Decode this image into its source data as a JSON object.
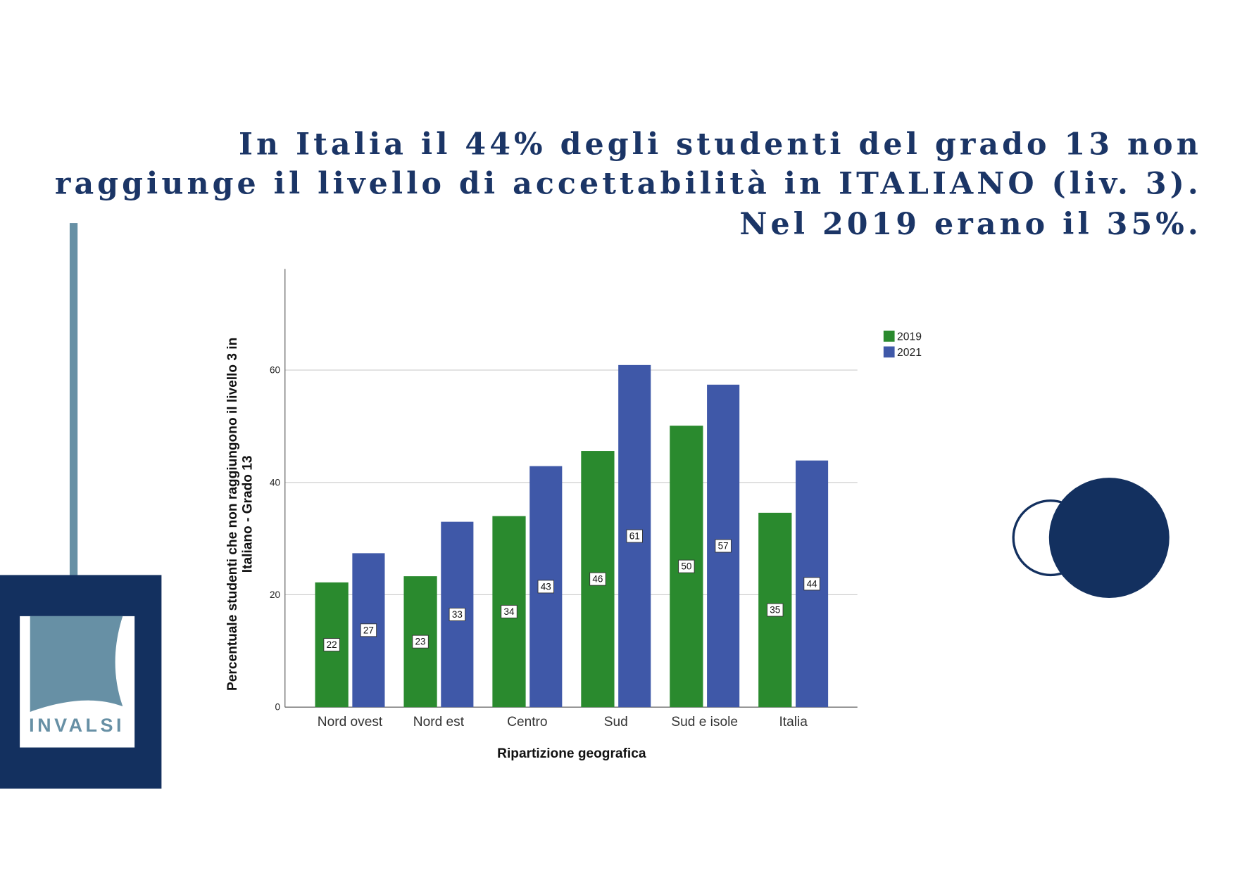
{
  "logo": "INVALSI",
  "chart_data": {
    "type": "bar",
    "title": [
      "In Italia il 44% degli studenti del grado 13 non",
      "raggiunge il livello di accettabilità in ITALIANO (liv. 3).",
      "Nel 2019 erano il 35%."
    ],
    "x_label": "Ripartizione geografica",
    "y_label": [
      "Percentuale studenti che non raggiungono il livello 3 in",
      "Italiano - Grado 13"
    ],
    "categories": [
      "Nord ovest",
      "Nord est",
      "Centro",
      "Sud",
      "Sud e isole",
      "Italia"
    ],
    "series": [
      {
        "name": "2019",
        "color": "#2a8a2e",
        "values": [
          22.2,
          23.3,
          34,
          45.6,
          50.1,
          34.6
        ],
        "value_labels": [
          "22",
          "23",
          "34",
          "46",
          "50",
          "35"
        ]
      },
      {
        "name": "2021",
        "color": "#3f58a8",
        "values": [
          27.4,
          33,
          42.9,
          60.9,
          57.4,
          43.9
        ],
        "value_labels": [
          "27",
          "33",
          "43",
          "61",
          "57",
          "44"
        ]
      }
    ],
    "ylim": [
      0,
      78
    ],
    "yticks": [
      0,
      20,
      40,
      60
    ],
    "grid": true,
    "legend": "upper right"
  }
}
